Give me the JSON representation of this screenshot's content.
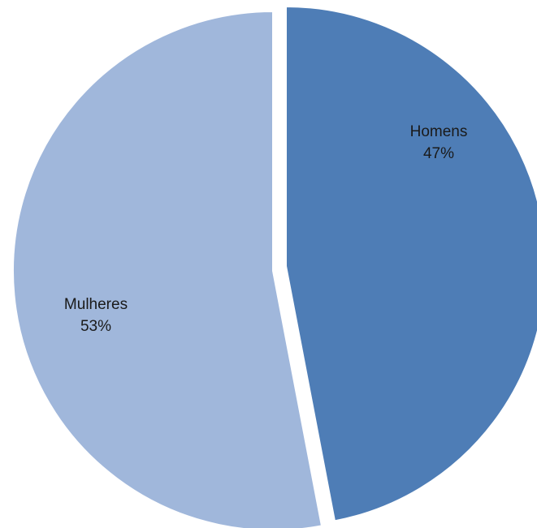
{
  "chart_data": {
    "type": "pie",
    "title": "",
    "slices": [
      {
        "name": "Homens",
        "label": "Homens",
        "value_label": "47%",
        "value": 47,
        "color": "#4e7db6"
      },
      {
        "name": "Mulheres",
        "label": "Mulheres",
        "value_label": "53%",
        "value": 53,
        "color": "#a0b7db"
      }
    ],
    "start_angle_deg": 0,
    "direction": "clockwise",
    "exploded": true,
    "legend": "none"
  }
}
